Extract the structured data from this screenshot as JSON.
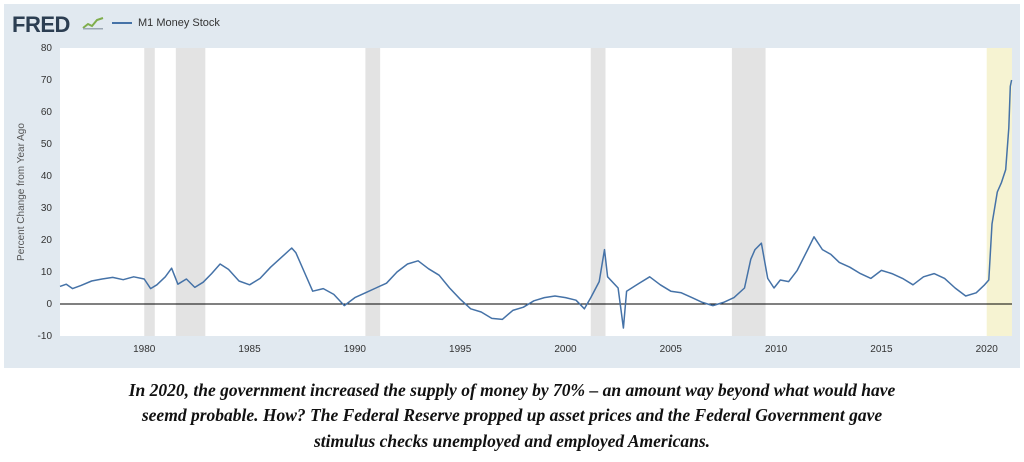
{
  "header": {
    "logo_text": "FRED",
    "logo_graph_icon": "trend-graph-icon"
  },
  "colors": {
    "panel_bg": "#e1e9f0",
    "plot_bg": "#ffffff",
    "series_line": "#4572a7",
    "recession_shade": "#e3e3e3",
    "highlight_shade": "#f6f3d2",
    "zero_line": "#000000"
  },
  "chart_data": {
    "type": "line",
    "title": "",
    "xlabel": "",
    "ylabel": "Percent Change from Year Ago",
    "xlim": [
      1976.0,
      2021.2
    ],
    "ylim": [
      -10,
      80
    ],
    "grid": false,
    "legend_placement": "top-left",
    "x_ticks": [
      "1980",
      "1985",
      "1990",
      "1995",
      "2000",
      "2005",
      "2010",
      "2015",
      "2020"
    ],
    "y_ticks": [
      "80",
      "70",
      "60",
      "50",
      "40",
      "30",
      "20",
      "10",
      "0",
      "-10"
    ],
    "recession_bands": [
      [
        1980.0,
        1980.5
      ],
      [
        1981.5,
        1982.9
      ],
      [
        1990.5,
        1991.2
      ],
      [
        2001.2,
        2001.9
      ],
      [
        2007.9,
        2009.5
      ],
      [
        2020.1,
        2020.5
      ]
    ],
    "highlight_band": [
      2020.0,
      2021.2
    ],
    "series": [
      {
        "name": "M1 Money Stock",
        "points": [
          [
            1976.0,
            5.5
          ],
          [
            1976.3,
            6.2
          ],
          [
            1976.6,
            4.8
          ],
          [
            1977.0,
            5.8
          ],
          [
            1977.5,
            7.2
          ],
          [
            1978.0,
            7.8
          ],
          [
            1978.5,
            8.3
          ],
          [
            1979.0,
            7.6
          ],
          [
            1979.5,
            8.5
          ],
          [
            1980.0,
            7.8
          ],
          [
            1980.3,
            4.8
          ],
          [
            1980.6,
            6.0
          ],
          [
            1981.0,
            8.5
          ],
          [
            1981.3,
            11.2
          ],
          [
            1981.6,
            6.2
          ],
          [
            1982.0,
            7.8
          ],
          [
            1982.4,
            5.2
          ],
          [
            1982.8,
            6.8
          ],
          [
            1983.2,
            9.5
          ],
          [
            1983.6,
            12.5
          ],
          [
            1984.0,
            10.8
          ],
          [
            1984.5,
            7.2
          ],
          [
            1985.0,
            6.0
          ],
          [
            1985.5,
            8.0
          ],
          [
            1986.0,
            11.5
          ],
          [
            1986.5,
            14.5
          ],
          [
            1987.0,
            17.5
          ],
          [
            1987.2,
            16.0
          ],
          [
            1987.6,
            10.0
          ],
          [
            1988.0,
            4.0
          ],
          [
            1988.5,
            4.8
          ],
          [
            1989.0,
            3.0
          ],
          [
            1989.5,
            -0.5
          ],
          [
            1990.0,
            2.0
          ],
          [
            1990.5,
            3.5
          ],
          [
            1991.0,
            5.0
          ],
          [
            1991.5,
            6.5
          ],
          [
            1992.0,
            10.0
          ],
          [
            1992.5,
            12.5
          ],
          [
            1993.0,
            13.5
          ],
          [
            1993.5,
            11.0
          ],
          [
            1994.0,
            9.0
          ],
          [
            1994.5,
            5.0
          ],
          [
            1995.0,
            1.5
          ],
          [
            1995.5,
            -1.5
          ],
          [
            1996.0,
            -2.5
          ],
          [
            1996.5,
            -4.5
          ],
          [
            1997.0,
            -4.8
          ],
          [
            1997.5,
            -2.0
          ],
          [
            1998.0,
            -1.0
          ],
          [
            1998.5,
            1.0
          ],
          [
            1999.0,
            2.0
          ],
          [
            1999.5,
            2.5
          ],
          [
            2000.0,
            2.0
          ],
          [
            2000.5,
            1.2
          ],
          [
            2000.9,
            -1.5
          ],
          [
            2001.2,
            2.0
          ],
          [
            2001.6,
            7.0
          ],
          [
            2001.85,
            17.0
          ],
          [
            2002.0,
            8.5
          ],
          [
            2002.5,
            5.0
          ],
          [
            2002.75,
            -7.5
          ],
          [
            2002.9,
            4.0
          ],
          [
            2003.5,
            6.5
          ],
          [
            2004.0,
            8.5
          ],
          [
            2004.5,
            6.0
          ],
          [
            2005.0,
            4.0
          ],
          [
            2005.5,
            3.5
          ],
          [
            2006.0,
            2.0
          ],
          [
            2006.5,
            0.5
          ],
          [
            2007.0,
            -0.5
          ],
          [
            2007.5,
            0.5
          ],
          [
            2008.0,
            2.0
          ],
          [
            2008.5,
            5.0
          ],
          [
            2008.8,
            14.0
          ],
          [
            2009.0,
            17.0
          ],
          [
            2009.3,
            19.0
          ],
          [
            2009.6,
            8.0
          ],
          [
            2009.9,
            5.0
          ],
          [
            2010.2,
            7.5
          ],
          [
            2010.6,
            7.0
          ],
          [
            2011.0,
            10.5
          ],
          [
            2011.5,
            17.0
          ],
          [
            2011.8,
            21.0
          ],
          [
            2012.2,
            17.0
          ],
          [
            2012.6,
            15.5
          ],
          [
            2013.0,
            13.0
          ],
          [
            2013.5,
            11.5
          ],
          [
            2014.0,
            9.5
          ],
          [
            2014.5,
            8.0
          ],
          [
            2015.0,
            10.5
          ],
          [
            2015.5,
            9.5
          ],
          [
            2016.0,
            8.0
          ],
          [
            2016.5,
            6.0
          ],
          [
            2017.0,
            8.5
          ],
          [
            2017.5,
            9.5
          ],
          [
            2018.0,
            8.0
          ],
          [
            2018.5,
            5.0
          ],
          [
            2019.0,
            2.5
          ],
          [
            2019.5,
            3.5
          ],
          [
            2019.9,
            6.0
          ],
          [
            2020.1,
            7.5
          ],
          [
            2020.25,
            25.0
          ],
          [
            2020.5,
            35.0
          ],
          [
            2020.7,
            38.0
          ],
          [
            2020.9,
            42.0
          ],
          [
            2021.05,
            55.0
          ],
          [
            2021.12,
            68.0
          ],
          [
            2021.18,
            70.0
          ]
        ]
      }
    ]
  },
  "caption": {
    "line1": "In 2020, the government increased the supply of money by 70% – an amount way beyond what would have",
    "line2": "seemd probable. How? The Federal Reserve propped up asset prices and the Federal Government gave",
    "line3": "stimulus checks unemployed and employed Americans."
  }
}
